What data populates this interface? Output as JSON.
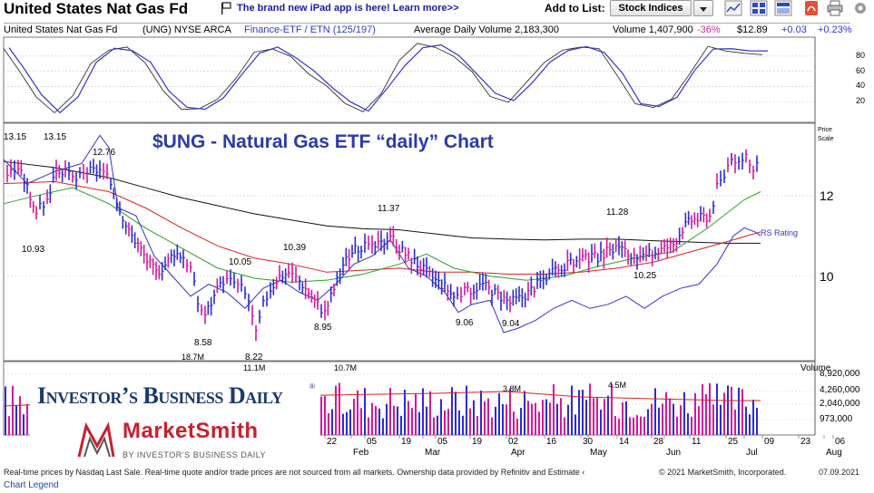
{
  "header": {
    "title": "United States Nat Gas Fd",
    "promo": "The brand new iPad app is here! Learn more>>",
    "add_to_list": "Add to List:",
    "list_value": "Stock Indices",
    "icons": [
      "line-chart-icon",
      "grid-layout-icon",
      "layout-icon",
      "pdf-icon",
      "print-icon",
      "settings-icon"
    ]
  },
  "quote": {
    "name": "United States Nat Gas Fd",
    "symbol_exchange": "(UNG) NYSE ARCA",
    "industry": "Finance-ETF / ETN (125/197)",
    "avg_volume": "Average Daily Volume 2,183,300",
    "volume": "Volume 1,407,900",
    "volume_change": "-36%",
    "price": "$12.89",
    "change": "+0.03",
    "change_pct": "+0.23%"
  },
  "chart_title": "$UNG - Natural Gas ETF “daily” Chart",
  "chart_data": [
    {
      "type": "line",
      "panel": "oscillator",
      "y_ticks": [
        "80",
        "60",
        "40",
        "20"
      ],
      "ylim": [
        0,
        100
      ]
    },
    {
      "type": "line",
      "panel": "price",
      "scale_label": "Price Scale",
      "y_ticks": [
        "12",
        "10"
      ],
      "ylim": [
        7.9,
        13.8
      ],
      "x_ticks": [
        "22",
        "Feb",
        "05",
        "19",
        "Mar",
        "05",
        "19",
        "02",
        "Apr",
        "16",
        "30",
        "May",
        "14",
        "28",
        "Jun",
        "11",
        "25",
        "Jul",
        "09",
        "23",
        "06",
        "Aug"
      ],
      "price_annotations": [
        {
          "label": "13.15",
          "value": 13.15
        },
        {
          "label": "13.15",
          "value": 13.15
        },
        {
          "label": "12.76",
          "value": 12.76
        },
        {
          "label": "10.93",
          "value": 10.93
        },
        {
          "label": "8.58",
          "value": 8.58
        },
        {
          "label": "10.05",
          "value": 10.05
        },
        {
          "label": "10.39",
          "value": 10.39
        },
        {
          "label": "8.22",
          "value": 8.22
        },
        {
          "label": "8.95",
          "value": 8.95
        },
        {
          "label": "11.37",
          "value": 11.37
        },
        {
          "label": "9.06",
          "value": 9.06
        },
        {
          "label": "9.04",
          "value": 9.04
        },
        {
          "label": "11.28",
          "value": 11.28
        },
        {
          "label": "10.25",
          "value": 10.25
        }
      ],
      "rs_label": "RS Rating"
    },
    {
      "type": "bar",
      "panel": "volume",
      "title": "Volume",
      "y_ticks": [
        "8,920,000",
        "4,260,000",
        "2,040,000",
        "973,000"
      ],
      "annotations": [
        "18.7M",
        "11.1M",
        "10.7M",
        "3.8M",
        "4.5M"
      ]
    }
  ],
  "logos": {
    "ibd": "Investor’s Business Daily",
    "ibd_mark": "®",
    "marketsmith": "MarketSmith",
    "marketsmith_sub": "BY INVESTOR’S BUSINESS DAILY"
  },
  "footer": {
    "disclaimer": "Real-time prices by Nasdaq Last Sale. Real-time quote and/or trade prices are not sourced from all markets. Ownership data provided by Refinitiv and Estimate ‹",
    "copyright": "© 2021 MarketSmith, Incorporated.",
    "date": "07.09.2021",
    "legend_link": "Chart Legend"
  },
  "colors": {
    "up": "#2b2bd6",
    "down": "#d6179a",
    "ma_short": "#2aa02a",
    "ma_mid": "#e02020",
    "ma_long": "#111111",
    "rs_line": "#3434c8",
    "title": "#2b3aa8",
    "positive": "#2a3ad0",
    "negative": "#e0229a"
  }
}
